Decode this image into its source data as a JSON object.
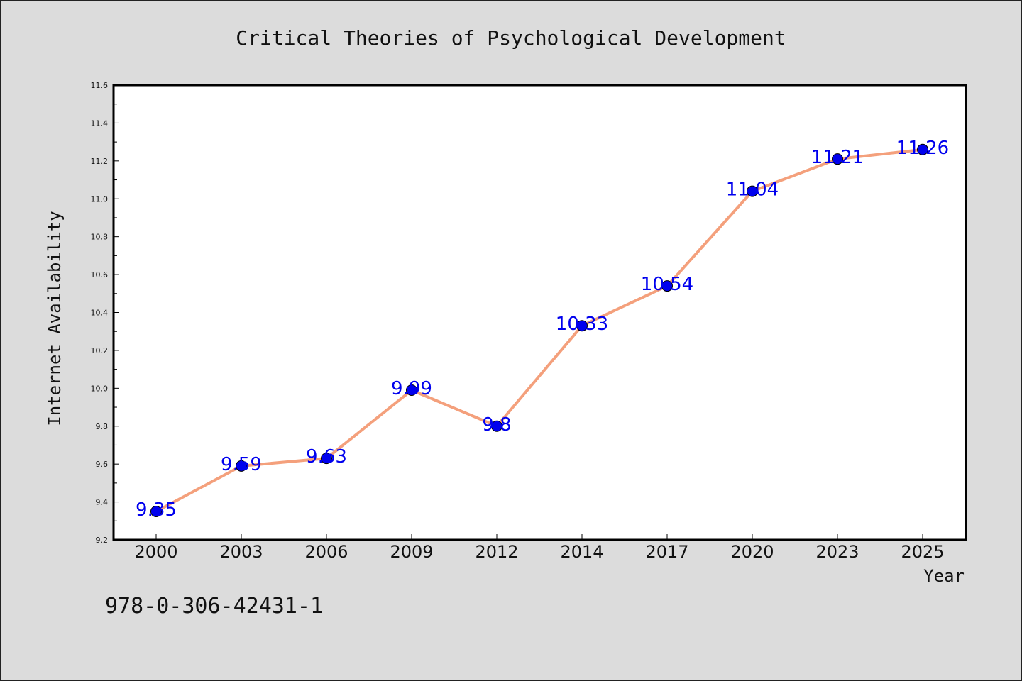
{
  "chart_data": {
    "type": "line",
    "title": "Critical Theories of Psychological Development",
    "xlabel": "Year",
    "ylabel": "Internet Availability",
    "categories": [
      "2000",
      "2003",
      "2006",
      "2009",
      "2012",
      "2014",
      "2017",
      "2020",
      "2023",
      "2025"
    ],
    "series": [
      {
        "values": [
          9.35,
          9.59,
          9.63,
          9.99,
          9.8,
          10.33,
          10.54,
          11.04,
          11.21,
          11.26
        ],
        "labels": [
          "9.35",
          "9.59",
          "9.63",
          "9.99",
          "9.8",
          "10.33",
          "10.54",
          "11.04",
          "11.21",
          "11.26"
        ],
        "line_color": "#f4a07c",
        "marker_color": "#0000ee",
        "label_color": "#0000ee"
      }
    ],
    "ylim": [
      9.2,
      11.6
    ],
    "yticks": [
      "9.2",
      "9.4",
      "9.6",
      "9.8",
      "10.0",
      "10.2",
      "10.4",
      "10.6",
      "10.8",
      "11.0",
      "11.2",
      "11.4",
      "11.6"
    ],
    "grid": false,
    "legend": "none"
  },
  "note": "978-0-306-42431-1",
  "colors": {
    "background": "#dcdcdc",
    "plot_background": "#ffffff",
    "axes": "#000000"
  }
}
